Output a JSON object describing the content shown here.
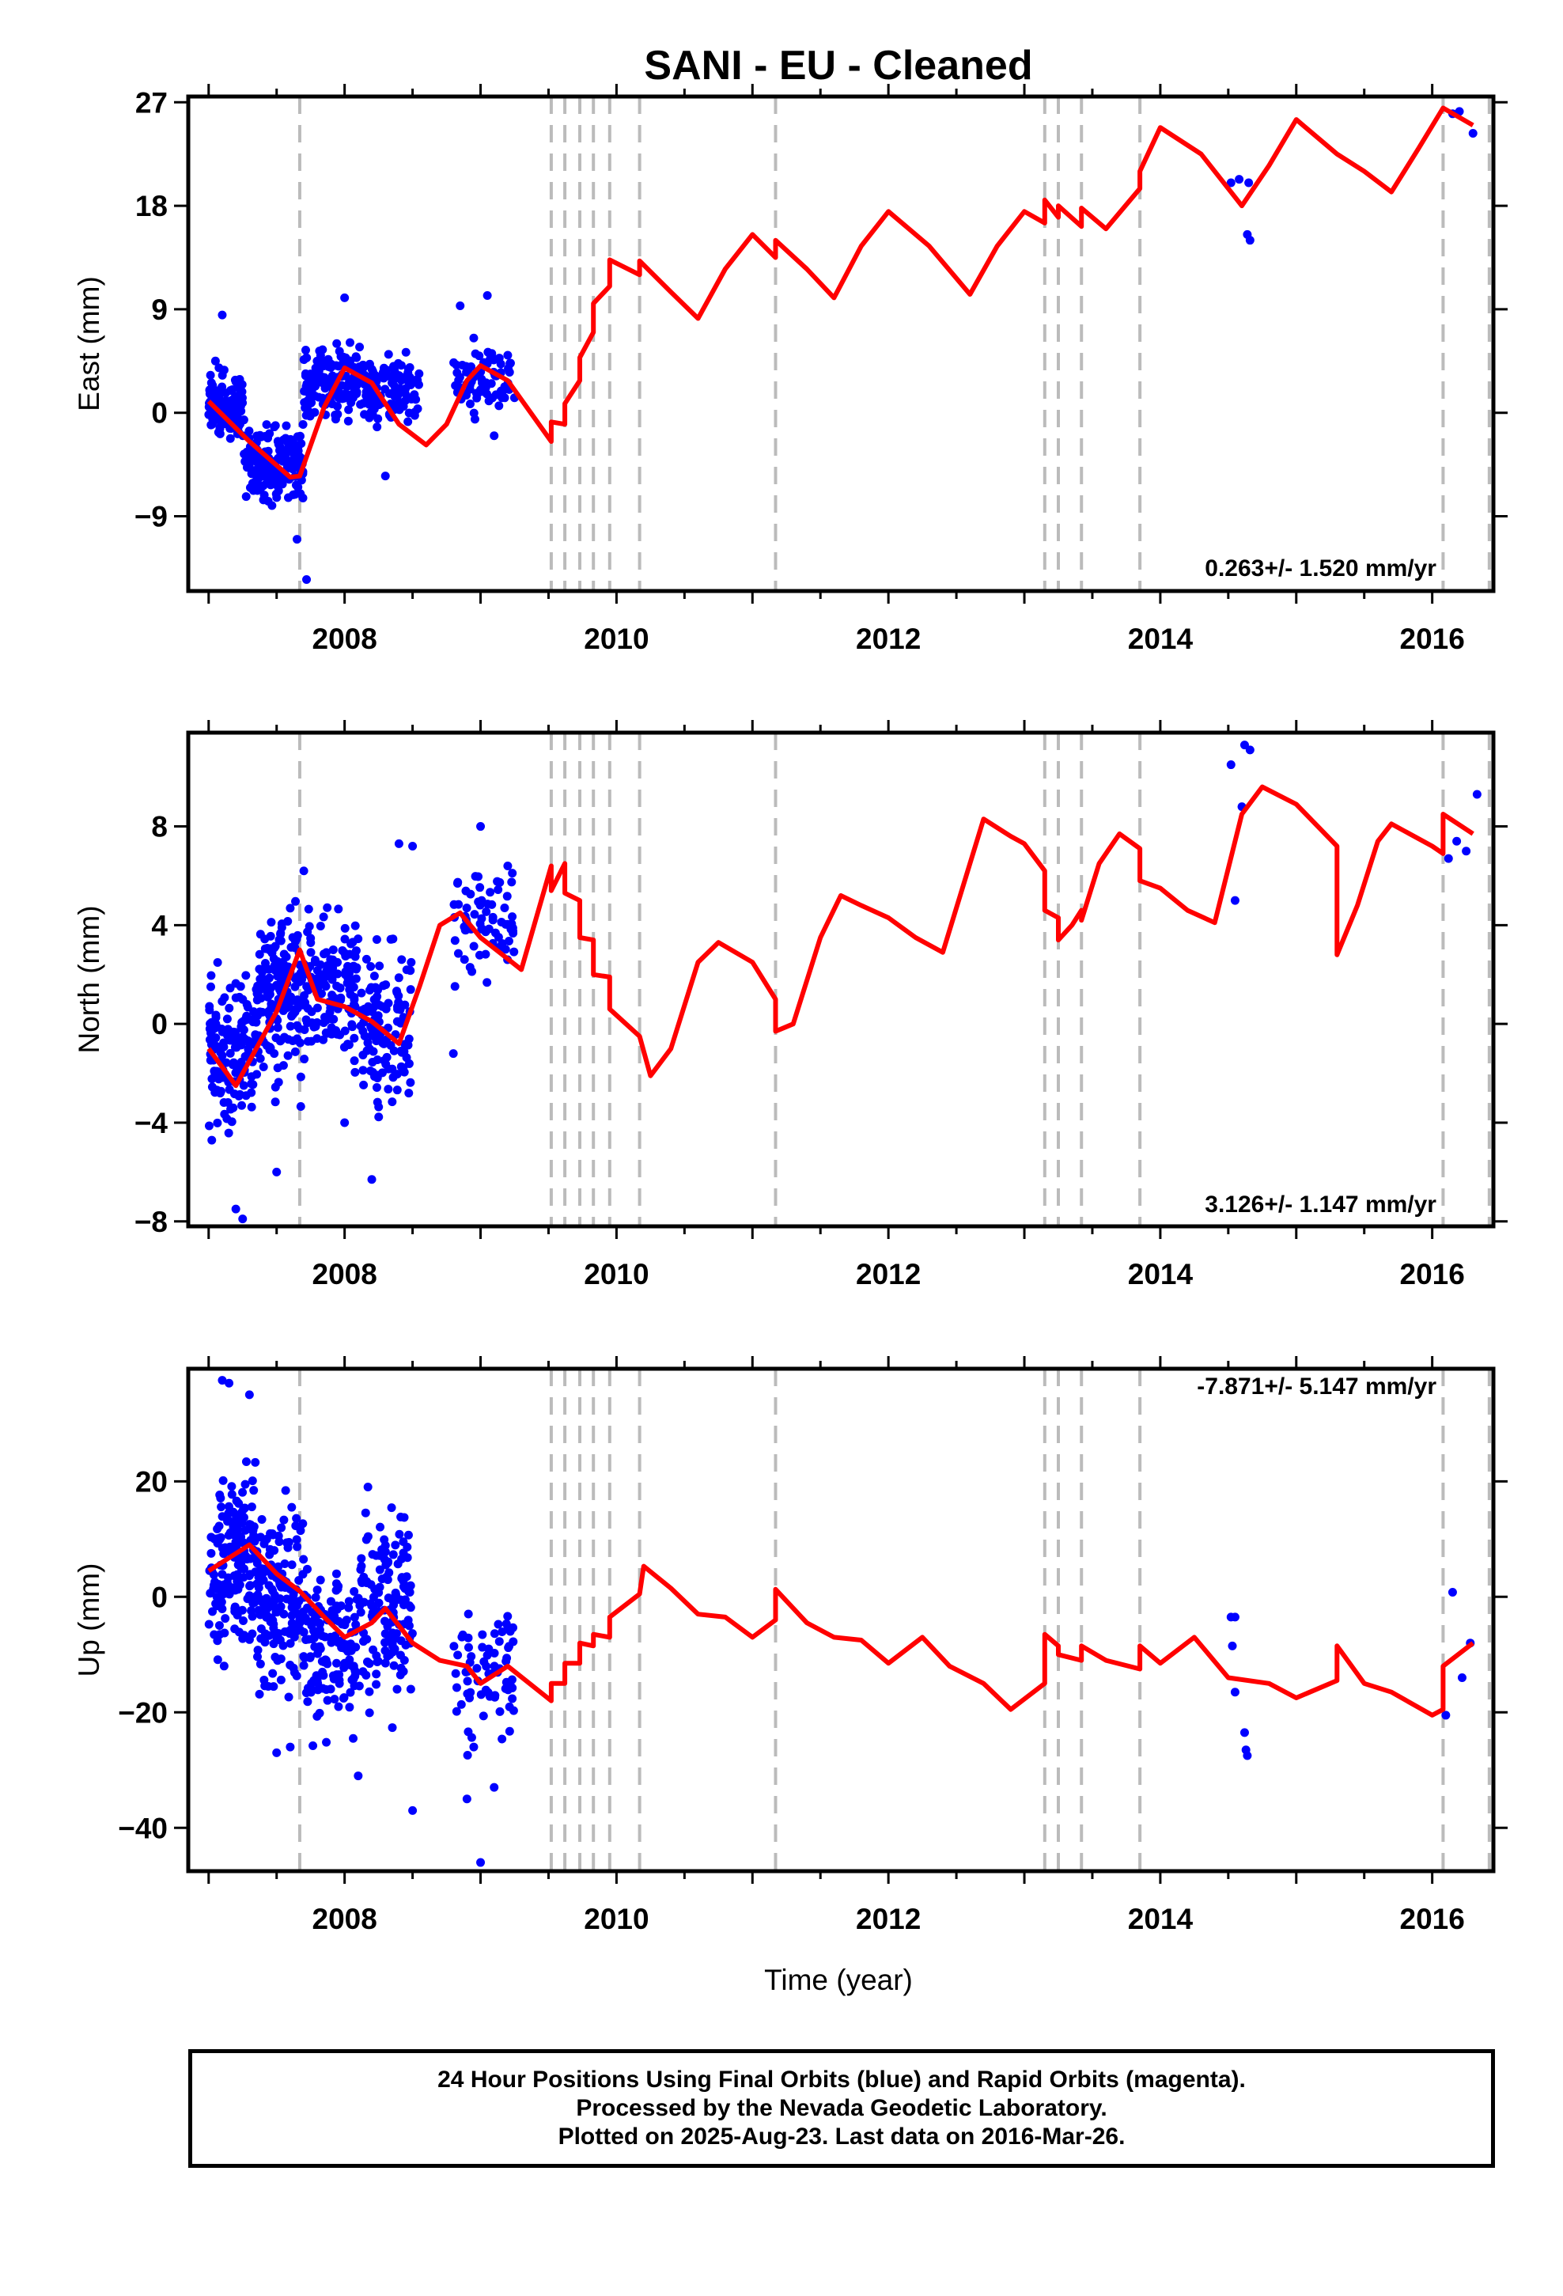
{
  "title": "SANI  - EU - Cleaned",
  "xlabel": "Time (year)",
  "footer": {
    "line1": "24 Hour Positions Using Final Orbits (blue) and Rapid Orbits (magenta).",
    "line2": "Processed by the Nevada Geodetic Laboratory.",
    "line3": "Plotted on 2025-Aug-23. Last data on 2016-Mar-26."
  },
  "colors": {
    "final_orbits": "#0000ff",
    "model": "#ff0000",
    "offsets": "#bbbbbb"
  },
  "chart_data": [
    {
      "type": "scatter",
      "ylabel": "East (mm)",
      "rate": "0.263+/- 1.520 mm/yr",
      "xlim": [
        2006.85,
        2016.45
      ],
      "ylim": [
        -15.5,
        27.5
      ],
      "xticks": [
        2008,
        2010,
        2012,
        2014,
        2016
      ],
      "yticks": [
        -9,
        0,
        9,
        18,
        27
      ],
      "offsets": [
        2007.67,
        2009.52,
        2009.62,
        2009.73,
        2009.83,
        2009.95,
        2010.17,
        2011.17,
        2013.15,
        2013.25,
        2013.42,
        2013.85,
        2016.08,
        2016.42
      ],
      "model": [
        [
          2007.0,
          1.0
        ],
        [
          2007.3,
          -2.5
        ],
        [
          2007.6,
          -5.6
        ],
        [
          2007.67,
          -5.5
        ],
        [
          2007.85,
          0.5
        ],
        [
          2008.0,
          3.9
        ],
        [
          2008.2,
          2.6
        ],
        [
          2008.4,
          -1.0
        ],
        [
          2008.6,
          -2.8
        ],
        [
          2008.75,
          -1.0
        ],
        [
          2008.9,
          2.8
        ],
        [
          2009.0,
          4.1
        ],
        [
          2009.2,
          2.8
        ],
        [
          2009.52,
          -2.5
        ],
        [
          2009.52,
          -0.8
        ],
        [
          2009.62,
          -1.0
        ],
        [
          2009.62,
          0.8
        ],
        [
          2009.73,
          2.8
        ],
        [
          2009.73,
          4.8
        ],
        [
          2009.83,
          7.0
        ],
        [
          2009.83,
          9.5
        ],
        [
          2009.95,
          11.0
        ],
        [
          2009.95,
          13.3
        ],
        [
          2010.17,
          12.0
        ],
        [
          2010.17,
          13.2
        ],
        [
          2010.4,
          10.5
        ],
        [
          2010.6,
          8.2
        ],
        [
          2010.8,
          12.5
        ],
        [
          2011.0,
          15.5
        ],
        [
          2011.17,
          13.5
        ],
        [
          2011.17,
          15.0
        ],
        [
          2011.4,
          12.5
        ],
        [
          2011.6,
          10.0
        ],
        [
          2011.8,
          14.5
        ],
        [
          2012.0,
          17.5
        ],
        [
          2012.3,
          14.5
        ],
        [
          2012.6,
          10.3
        ],
        [
          2012.8,
          14.5
        ],
        [
          2013.0,
          17.5
        ],
        [
          2013.15,
          16.5
        ],
        [
          2013.15,
          18.5
        ],
        [
          2013.25,
          17.0
        ],
        [
          2013.25,
          18.0
        ],
        [
          2013.42,
          16.2
        ],
        [
          2013.42,
          17.8
        ],
        [
          2013.6,
          16.0
        ],
        [
          2013.85,
          19.5
        ],
        [
          2013.85,
          21.0
        ],
        [
          2014.0,
          24.8
        ],
        [
          2014.3,
          22.5
        ],
        [
          2014.6,
          18.0
        ],
        [
          2014.8,
          21.5
        ],
        [
          2015.0,
          25.5
        ],
        [
          2015.3,
          22.5
        ],
        [
          2015.5,
          21.0
        ],
        [
          2015.7,
          19.2
        ],
        [
          2015.9,
          23.0
        ],
        [
          2016.08,
          26.5
        ],
        [
          2016.3,
          25.0
        ]
      ],
      "points": [
        [
          2008.85,
          9.3
        ],
        [
          2009.05,
          10.2
        ],
        [
          2008.9,
          4.0
        ],
        [
          2009.1,
          -2.0
        ],
        [
          2009.2,
          5.0
        ],
        [
          2009.0,
          2.0
        ],
        [
          2008.95,
          6.5
        ],
        [
          2009.15,
          3.5
        ],
        [
          2014.52,
          20.0
        ],
        [
          2014.58,
          20.3
        ],
        [
          2014.65,
          20.0
        ],
        [
          2014.64,
          15.5
        ],
        [
          2014.66,
          15.0
        ],
        [
          2016.15,
          26.0
        ],
        [
          2016.2,
          26.2
        ],
        [
          2016.3,
          24.3
        ],
        [
          2007.1,
          8.5
        ],
        [
          2007.05,
          4.5
        ],
        [
          2007.65,
          -11.0
        ],
        [
          2007.72,
          -14.5
        ],
        [
          2008.0,
          10.0
        ],
        [
          2008.3,
          -5.5
        ]
      ],
      "clusters": [
        {
          "x": [
            2007.0,
            2007.25
          ],
          "y": [
            -3.0,
            4.5
          ],
          "n": 130
        },
        {
          "x": [
            2007.25,
            2007.7
          ],
          "y": [
            -9.0,
            0.0
          ],
          "n": 190
        },
        {
          "x": [
            2007.7,
            2008.1
          ],
          "y": [
            -2.0,
            7.0
          ],
          "n": 140
        },
        {
          "x": [
            2008.1,
            2008.55
          ],
          "y": [
            -2.0,
            6.0
          ],
          "n": 120
        },
        {
          "x": [
            2008.8,
            2009.25
          ],
          "y": [
            -1.5,
            7.0
          ],
          "n": 70
        }
      ]
    },
    {
      "type": "scatter",
      "ylabel": "North (mm)",
      "rate": "3.126+/- 1.147 mm/yr",
      "xlim": [
        2006.85,
        2016.45
      ],
      "ylim": [
        -8.2,
        11.8
      ],
      "xticks": [
        2008,
        2010,
        2012,
        2014,
        2016
      ],
      "yticks": [
        -8,
        -4,
        0,
        4,
        8
      ],
      "offsets": [
        2007.67,
        2009.52,
        2009.62,
        2009.73,
        2009.83,
        2009.95,
        2010.17,
        2011.17,
        2013.15,
        2013.25,
        2013.42,
        2013.85,
        2016.08,
        2016.42
      ],
      "model": [
        [
          2007.0,
          -1.0
        ],
        [
          2007.2,
          -2.5
        ],
        [
          2007.5,
          0.5
        ],
        [
          2007.67,
          3.0
        ],
        [
          2007.8,
          1.0
        ],
        [
          2008.0,
          0.7
        ],
        [
          2008.2,
          0.1
        ],
        [
          2008.4,
          -0.8
        ],
        [
          2008.55,
          1.5
        ],
        [
          2008.7,
          4.0
        ],
        [
          2008.85,
          4.5
        ],
        [
          2009.0,
          3.5
        ],
        [
          2009.3,
          2.2
        ],
        [
          2009.52,
          6.4
        ],
        [
          2009.52,
          5.4
        ],
        [
          2009.62,
          6.5
        ],
        [
          2009.62,
          5.3
        ],
        [
          2009.73,
          5.0
        ],
        [
          2009.73,
          3.5
        ],
        [
          2009.83,
          3.4
        ],
        [
          2009.83,
          2.0
        ],
        [
          2009.95,
          1.9
        ],
        [
          2009.95,
          0.6
        ],
        [
          2010.17,
          -0.5
        ],
        [
          2010.25,
          -2.1
        ],
        [
          2010.4,
          -1.0
        ],
        [
          2010.6,
          2.5
        ],
        [
          2010.75,
          3.3
        ],
        [
          2011.0,
          2.5
        ],
        [
          2011.17,
          1.0
        ],
        [
          2011.17,
          -0.3
        ],
        [
          2011.3,
          0.0
        ],
        [
          2011.5,
          3.5
        ],
        [
          2011.65,
          5.2
        ],
        [
          2011.8,
          4.8
        ],
        [
          2012.0,
          4.3
        ],
        [
          2012.2,
          3.5
        ],
        [
          2012.4,
          2.9
        ],
        [
          2012.6,
          6.5
        ],
        [
          2012.7,
          8.3
        ],
        [
          2012.9,
          7.6
        ],
        [
          2013.0,
          7.3
        ],
        [
          2013.15,
          6.2
        ],
        [
          2013.15,
          4.6
        ],
        [
          2013.25,
          4.3
        ],
        [
          2013.25,
          3.4
        ],
        [
          2013.35,
          4.0
        ],
        [
          2013.42,
          4.6
        ],
        [
          2013.42,
          4.2
        ],
        [
          2013.55,
          6.5
        ],
        [
          2013.7,
          7.7
        ],
        [
          2013.85,
          7.1
        ],
        [
          2013.85,
          5.8
        ],
        [
          2014.0,
          5.5
        ],
        [
          2014.2,
          4.6
        ],
        [
          2014.4,
          4.1
        ],
        [
          2014.6,
          8.5
        ],
        [
          2014.75,
          9.6
        ],
        [
          2015.0,
          8.9
        ],
        [
          2015.3,
          7.2
        ],
        [
          2015.3,
          2.8
        ],
        [
          2015.45,
          4.8
        ],
        [
          2015.6,
          7.4
        ],
        [
          2015.7,
          8.1
        ],
        [
          2016.0,
          7.2
        ],
        [
          2016.08,
          6.9
        ],
        [
          2016.08,
          8.5
        ],
        [
          2016.3,
          7.7
        ]
      ],
      "points": [
        [
          2007.2,
          -7.5
        ],
        [
          2007.25,
          -7.9
        ],
        [
          2007.7,
          6.2
        ],
        [
          2008.4,
          7.3
        ],
        [
          2008.5,
          7.2
        ],
        [
          2009.0,
          8.0
        ],
        [
          2008.8,
          -1.2
        ],
        [
          2009.2,
          6.4
        ],
        [
          2014.52,
          10.5
        ],
        [
          2014.62,
          11.3
        ],
        [
          2014.66,
          11.1
        ],
        [
          2014.55,
          5.0
        ],
        [
          2014.6,
          8.8
        ],
        [
          2016.12,
          6.7
        ],
        [
          2016.18,
          7.4
        ],
        [
          2016.25,
          7.0
        ],
        [
          2016.33,
          9.3
        ],
        [
          2007.5,
          -6.0
        ],
        [
          2008.2,
          -6.3
        ],
        [
          2008.0,
          -4.0
        ]
      ],
      "clusters": [
        {
          "x": [
            2007.0,
            2007.35
          ],
          "y": [
            -5.5,
            3.0
          ],
          "n": 150
        },
        {
          "x": [
            2007.35,
            2007.7
          ],
          "y": [
            -4.0,
            6.0
          ],
          "n": 170
        },
        {
          "x": [
            2007.7,
            2008.1
          ],
          "y": [
            -3.0,
            6.0
          ],
          "n": 140
        },
        {
          "x": [
            2008.1,
            2008.5
          ],
          "y": [
            -4.5,
            4.0
          ],
          "n": 120
        },
        {
          "x": [
            2008.8,
            2009.25
          ],
          "y": [
            1.0,
            7.5
          ],
          "n": 70
        }
      ]
    },
    {
      "type": "scatter",
      "ylabel": "Up (mm)",
      "rate": "-7.871+/- 5.147 mm/yr",
      "xlim": [
        2006.85,
        2016.45
      ],
      "ylim": [
        -47.5,
        39.5
      ],
      "xticks": [
        2008,
        2010,
        2012,
        2014,
        2016
      ],
      "yticks": [
        -40,
        -20,
        0,
        20
      ],
      "offsets": [
        2007.67,
        2009.52,
        2009.62,
        2009.73,
        2009.83,
        2009.95,
        2010.17,
        2011.17,
        2013.15,
        2013.25,
        2013.42,
        2013.85,
        2016.08,
        2016.42
      ],
      "model": [
        [
          2007.0,
          4.5
        ],
        [
          2007.3,
          9.0
        ],
        [
          2007.5,
          4.0
        ],
        [
          2007.67,
          1.0
        ],
        [
          2007.85,
          -3.5
        ],
        [
          2008.0,
          -7.0
        ],
        [
          2008.2,
          -4.5
        ],
        [
          2008.3,
          -2.0
        ],
        [
          2008.5,
          -8.0
        ],
        [
          2008.7,
          -11.0
        ],
        [
          2008.9,
          -12.0
        ],
        [
          2009.0,
          -15.0
        ],
        [
          2009.2,
          -12.0
        ],
        [
          2009.52,
          -18.0
        ],
        [
          2009.52,
          -15.0
        ],
        [
          2009.62,
          -15.0
        ],
        [
          2009.62,
          -11.5
        ],
        [
          2009.73,
          -11.5
        ],
        [
          2009.73,
          -8.0
        ],
        [
          2009.83,
          -8.5
        ],
        [
          2009.83,
          -6.5
        ],
        [
          2009.95,
          -7.0
        ],
        [
          2009.95,
          -3.5
        ],
        [
          2010.17,
          0.5
        ],
        [
          2010.2,
          5.3
        ],
        [
          2010.4,
          1.5
        ],
        [
          2010.6,
          -3.0
        ],
        [
          2010.8,
          -3.5
        ],
        [
          2011.0,
          -7.0
        ],
        [
          2011.17,
          -4.0
        ],
        [
          2011.17,
          1.3
        ],
        [
          2011.4,
          -4.5
        ],
        [
          2011.6,
          -7.0
        ],
        [
          2011.8,
          -7.5
        ],
        [
          2012.0,
          -11.5
        ],
        [
          2012.25,
          -7.0
        ],
        [
          2012.45,
          -12.0
        ],
        [
          2012.7,
          -15.0
        ],
        [
          2012.9,
          -19.5
        ],
        [
          2013.15,
          -15.0
        ],
        [
          2013.15,
          -6.5
        ],
        [
          2013.25,
          -8.5
        ],
        [
          2013.25,
          -10.0
        ],
        [
          2013.42,
          -11.0
        ],
        [
          2013.42,
          -8.5
        ],
        [
          2013.6,
          -11.0
        ],
        [
          2013.85,
          -12.5
        ],
        [
          2013.85,
          -8.5
        ],
        [
          2014.0,
          -11.5
        ],
        [
          2014.25,
          -7.0
        ],
        [
          2014.5,
          -14.0
        ],
        [
          2014.8,
          -15.0
        ],
        [
          2015.0,
          -17.5
        ],
        [
          2015.3,
          -14.5
        ],
        [
          2015.3,
          -8.5
        ],
        [
          2015.5,
          -15.0
        ],
        [
          2015.7,
          -16.5
        ],
        [
          2016.0,
          -20.5
        ],
        [
          2016.08,
          -19.5
        ],
        [
          2016.08,
          -12.0
        ],
        [
          2016.3,
          -8.0
        ]
      ],
      "points": [
        [
          2007.1,
          37.5
        ],
        [
          2007.15,
          37.0
        ],
        [
          2007.3,
          35.0
        ],
        [
          2008.5,
          -37.0
        ],
        [
          2009.0,
          -46.0
        ],
        [
          2008.9,
          -35.0
        ],
        [
          2009.1,
          -33.0
        ],
        [
          2008.95,
          -26.0
        ],
        [
          2014.52,
          -3.5
        ],
        [
          2014.55,
          -3.5
        ],
        [
          2014.53,
          -8.5
        ],
        [
          2014.55,
          -16.5
        ],
        [
          2014.62,
          -23.5
        ],
        [
          2014.63,
          -26.5
        ],
        [
          2014.64,
          -27.5
        ],
        [
          2016.15,
          0.8
        ],
        [
          2016.22,
          -14.0
        ],
        [
          2016.28,
          -8.0
        ],
        [
          2016.1,
          -20.5
        ],
        [
          2007.5,
          -27.0
        ],
        [
          2007.6,
          -26.0
        ],
        [
          2008.1,
          -31.0
        ]
      ],
      "clusters": [
        {
          "x": [
            2007.0,
            2007.35
          ],
          "y": [
            -15.0,
            28.0
          ],
          "n": 170
        },
        {
          "x": [
            2007.35,
            2007.7
          ],
          "y": [
            -22.0,
            22.0
          ],
          "n": 150
        },
        {
          "x": [
            2007.7,
            2008.1
          ],
          "y": [
            -28.0,
            10.0
          ],
          "n": 140
        },
        {
          "x": [
            2008.1,
            2008.5
          ],
          "y": [
            -25.0,
            22.0
          ],
          "n": 140
        },
        {
          "x": [
            2008.8,
            2009.25
          ],
          "y": [
            -30.0,
            3.0
          ],
          "n": 70
        }
      ]
    }
  ]
}
